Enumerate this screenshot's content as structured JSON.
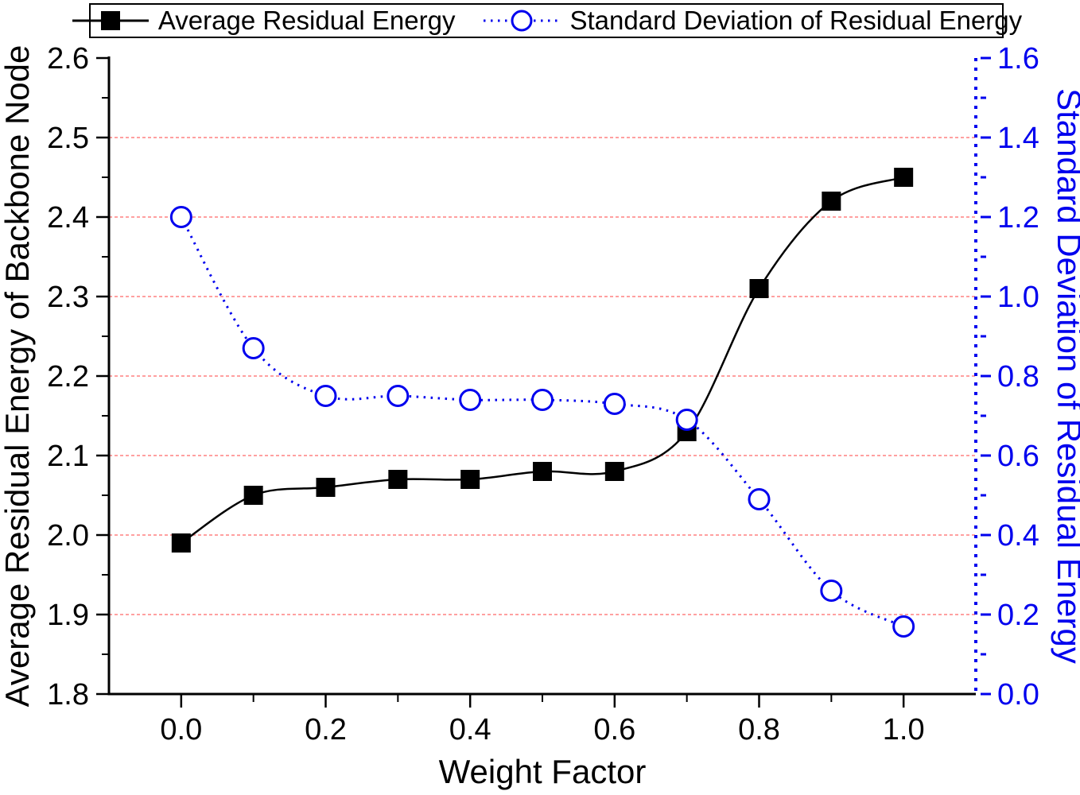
{
  "chart_data": {
    "type": "line",
    "title": "",
    "xlabel": "Weight Factor",
    "ylabel_left": "Average Residual Energy of Backbone Node",
    "ylabel_right": "Standard Deviation of Residual Energy",
    "x": [
      0.0,
      0.1,
      0.2,
      0.3,
      0.4,
      0.5,
      0.6,
      0.7,
      0.8,
      0.9,
      1.0
    ],
    "series": [
      {
        "name": "Average Residual Energy",
        "axis": "left",
        "color": "#000000",
        "marker": "filled-square",
        "line_style": "solid",
        "values": [
          1.99,
          2.05,
          2.06,
          2.07,
          2.07,
          2.08,
          2.08,
          2.13,
          2.31,
          2.42,
          2.45
        ]
      },
      {
        "name": "Standard Deviation of Residual Energy",
        "axis": "right",
        "color": "#0000ee",
        "marker": "open-circle",
        "line_style": "dotted",
        "values": [
          1.2,
          0.87,
          0.75,
          0.75,
          0.74,
          0.74,
          0.73,
          0.69,
          0.49,
          0.26,
          0.17
        ]
      }
    ],
    "xlim": [
      -0.1,
      1.1
    ],
    "ylim_left": [
      1.8,
      2.6
    ],
    "ylim_right": [
      0.0,
      1.6
    ],
    "x_ticks": [
      "0.0",
      "0.2",
      "0.4",
      "0.6",
      "0.8",
      "1.0"
    ],
    "x_minor_ticks": [
      0.1,
      0.3,
      0.5,
      0.7,
      0.9
    ],
    "left_ticks": [
      "2.6",
      "2.5",
      "2.4",
      "2.3",
      "2.2",
      "2.1",
      "2.0",
      "1.9",
      "1.8"
    ],
    "left_minor_ticks": [
      1.85,
      1.95,
      2.05,
      2.15,
      2.25,
      2.35,
      2.45,
      2.55
    ],
    "right_ticks": [
      "1.6",
      "1.4",
      "1.2",
      "1.0",
      "0.8",
      "0.6",
      "0.4",
      "0.2",
      "0.0"
    ],
    "right_minor_ticks": [
      0.1,
      0.3,
      0.5,
      0.7,
      0.9,
      1.1,
      1.3,
      1.5
    ],
    "grid_values_left": [
      2.5,
      2.4,
      2.3,
      2.2,
      2.1,
      2.0,
      1.9
    ],
    "grid_on": true,
    "gridline_color": "#ff8080",
    "axis_color": "#000000",
    "right_axis_color": "#0000ee",
    "legend_position": "top"
  }
}
